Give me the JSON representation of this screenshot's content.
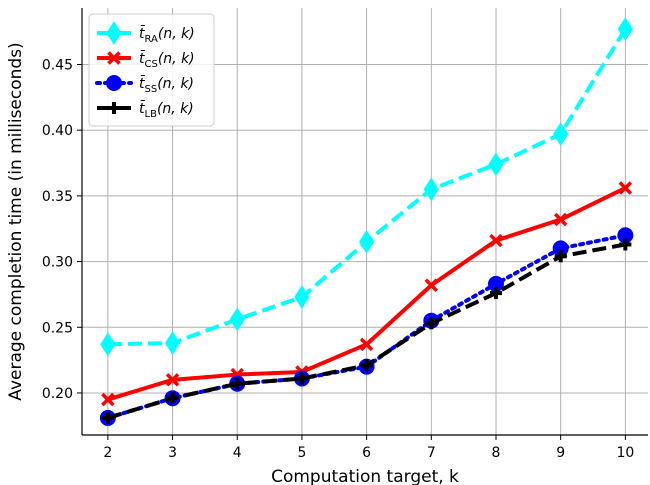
{
  "chart_data": {
    "type": "line",
    "xlabel": "Computation target, k",
    "ylabel": "Average completion time (in milliseconds)",
    "x": [
      2,
      3,
      4,
      5,
      6,
      7,
      8,
      9,
      10
    ],
    "xlim": [
      1.6,
      10.35
    ],
    "ylim": [
      0.168,
      0.493
    ],
    "xticks": [
      2,
      3,
      4,
      5,
      6,
      7,
      8,
      9,
      10
    ],
    "yticks": [
      0.2,
      0.25,
      0.3,
      0.35,
      0.4,
      0.45
    ],
    "ytick_labels": [
      "0.20",
      "0.25",
      "0.30",
      "0.35",
      "0.40",
      "0.45"
    ],
    "grid": true,
    "legend_position": "top-left",
    "series": [
      {
        "name": "t̄RA(n, k)",
        "label_base": "t̄",
        "label_sub": "RA",
        "label_args": "(n, k)",
        "color": "#00FFFF",
        "dash": "dashed",
        "marker": "thin-diamond",
        "values": [
          0.237,
          0.238,
          0.256,
          0.273,
          0.315,
          0.355,
          0.374,
          0.397,
          0.477
        ]
      },
      {
        "name": "t̄CS(n, k)",
        "label_base": "t̄",
        "label_sub": "CS",
        "label_args": "(n, k)",
        "color": "#FF0000",
        "dash": "solid",
        "marker": "x",
        "values": [
          0.195,
          0.21,
          0.214,
          0.216,
          0.237,
          0.282,
          0.316,
          0.332,
          0.356
        ]
      },
      {
        "name": "t̄SS(n, k)",
        "label_base": "t̄",
        "label_sub": "SS",
        "label_args": "(n, k)",
        "color": "#0000FF",
        "dash": "dotted",
        "marker": "circle",
        "values": [
          0.181,
          0.196,
          0.207,
          0.211,
          0.22,
          0.255,
          0.283,
          0.31,
          0.32
        ]
      },
      {
        "name": "t̄LB(n, k)",
        "label_base": "t̄",
        "label_sub": "LB",
        "label_args": "(n, k)",
        "color": "#000000",
        "dash": "dashed",
        "marker": "plus",
        "values": [
          0.181,
          0.196,
          0.207,
          0.211,
          0.221,
          0.253,
          0.276,
          0.304,
          0.313
        ]
      }
    ]
  }
}
